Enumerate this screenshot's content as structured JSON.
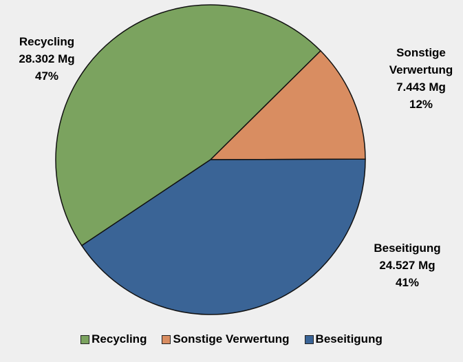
{
  "chart_data": {
    "type": "pie",
    "categories": [
      "Recycling",
      "Sonstige Verwertung",
      "Beseitigung"
    ],
    "values": [
      28302,
      7443,
      24527
    ],
    "value_labels": [
      "28.302 Mg",
      "7.443 Mg",
      "24.527 Mg"
    ],
    "percents": [
      47,
      12,
      41
    ],
    "percent_labels": [
      "47%",
      "12%",
      "41%"
    ],
    "colors": [
      "#7ba35f",
      "#d98d61",
      "#3a6496"
    ],
    "legend": "bottom"
  }
}
